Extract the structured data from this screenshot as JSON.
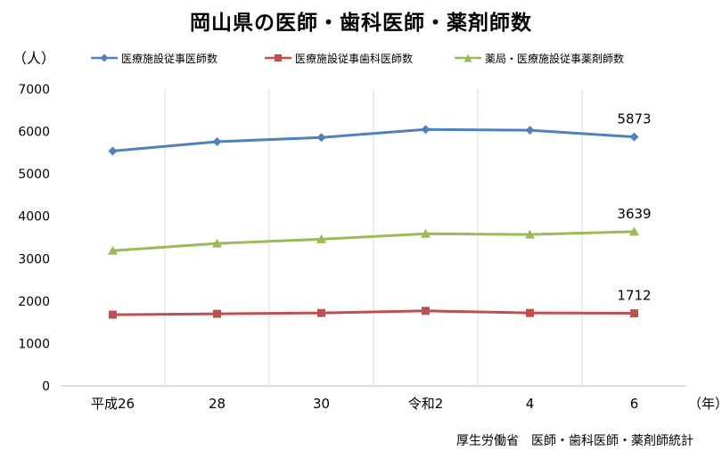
{
  "chart_data": {
    "type": "line",
    "title": "岡山県の医師・歯科医師・薬剤師数",
    "ylabel": "（人）",
    "xlabel": "（年）",
    "categories": [
      "平成26",
      "28",
      "30",
      "令和2",
      "4",
      "6"
    ],
    "ylim": [
      0,
      7000
    ],
    "yticks": [
      0,
      1000,
      2000,
      3000,
      4000,
      5000,
      6000,
      7000
    ],
    "grid": "vertical",
    "legend_position": "top",
    "series": [
      {
        "name": "医療施設従事医師数",
        "color": "#4F81BD",
        "marker": "diamond",
        "values": [
          5540,
          5760,
          5860,
          6050,
          6030,
          5873
        ],
        "end_label": "5873"
      },
      {
        "name": "医療施設従事歯科医師数",
        "color": "#C0504D",
        "marker": "square",
        "values": [
          1680,
          1700,
          1720,
          1770,
          1720,
          1712
        ],
        "end_label": "1712"
      },
      {
        "name": "薬局・医療施設従事薬剤師数",
        "color": "#9BBB59",
        "marker": "triangle",
        "values": [
          3190,
          3360,
          3460,
          3590,
          3570,
          3639
        ],
        "end_label": "3639"
      }
    ],
    "source": "厚生労働省　医師・歯科医師・薬剤師統計"
  }
}
